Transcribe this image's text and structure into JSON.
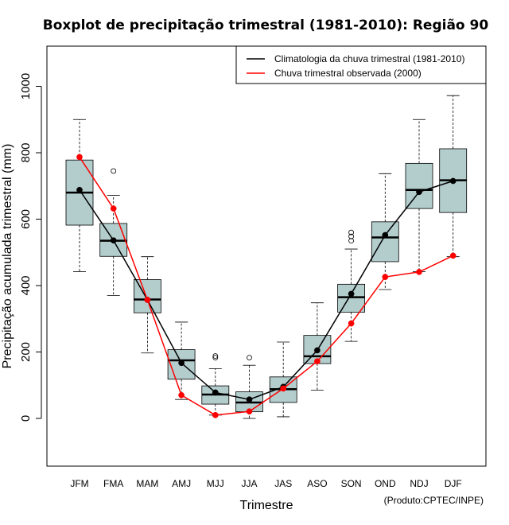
{
  "chart_data": {
    "type": "boxplot",
    "title": "Boxplot de precipitação trimestral (1981-2010): Região 90",
    "xlabel": "Trimestre",
    "ylabel": "Precipitação acumulada trimestral (mm)",
    "credit": "(Produto:CPTEC/INPE)",
    "ylim": [
      -140,
      1120
    ],
    "yticks": [
      0,
      200,
      400,
      600,
      800,
      1000
    ],
    "categories": [
      "JFM",
      "FMA",
      "MAM",
      "AMJ",
      "MJJ",
      "JJA",
      "JAS",
      "ASO",
      "SON",
      "OND",
      "NDJ",
      "DJF"
    ],
    "boxes": [
      {
        "min": 442,
        "q1": 582,
        "median": 680,
        "q3": 778,
        "max": 900,
        "outliers": []
      },
      {
        "min": 370,
        "q1": 488,
        "median": 535,
        "q3": 587,
        "max": 672,
        "outliers": [
          745
        ]
      },
      {
        "min": 197,
        "q1": 318,
        "median": 358,
        "q3": 418,
        "max": 487,
        "outliers": []
      },
      {
        "min": 57,
        "q1": 118,
        "median": 175,
        "q3": 207,
        "max": 290,
        "outliers": []
      },
      {
        "min": 10,
        "q1": 43,
        "median": 72,
        "q3": 98,
        "max": 150,
        "outliers": [
          183,
          188
        ]
      },
      {
        "min": 0,
        "q1": 20,
        "median": 48,
        "q3": 80,
        "max": 160,
        "outliers": [
          183
        ]
      },
      {
        "min": 5,
        "q1": 48,
        "median": 88,
        "q3": 125,
        "max": 230,
        "outliers": []
      },
      {
        "min": 85,
        "q1": 165,
        "median": 187,
        "q3": 250,
        "max": 348,
        "outliers": []
      },
      {
        "min": 232,
        "q1": 320,
        "median": 365,
        "q3": 404,
        "max": 510,
        "outliers": [
          535,
          548,
          560
        ]
      },
      {
        "min": 388,
        "q1": 472,
        "median": 545,
        "q3": 592,
        "max": 737,
        "outliers": []
      },
      {
        "min": 442,
        "q1": 632,
        "median": 688,
        "q3": 768,
        "max": 900,
        "outliers": []
      },
      {
        "min": 487,
        "q1": 620,
        "median": 717,
        "q3": 812,
        "max": 972,
        "outliers": []
      }
    ],
    "series": [
      {
        "name": "Climatologia da chuva trimestral (1981-2010)",
        "color": "#000000",
        "values": [
          688,
          536,
          357,
          167,
          78,
          57,
          95,
          205,
          375,
          552,
          682,
          715
        ]
      },
      {
        "name": "Chuva trimestral observada (2000)",
        "color": "#ff0000",
        "values": [
          787,
          632,
          357,
          70,
          10,
          21,
          90,
          172,
          286,
          426,
          441,
          490
        ]
      }
    ],
    "box_fill": "#b3cccc",
    "legend_position": "top-right"
  }
}
